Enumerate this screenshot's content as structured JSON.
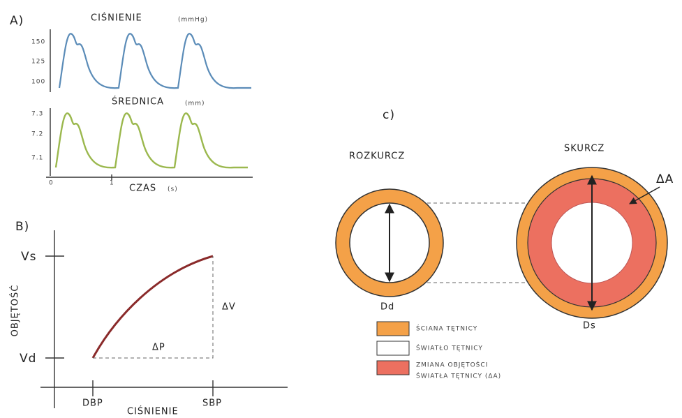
{
  "panel_a": {
    "label": "A)",
    "pressure": {
      "title": "CIŚNIENIE",
      "unit": "(mmHg)",
      "ticks": [
        "150",
        "125",
        "100"
      ]
    },
    "diameter": {
      "title": "ŚREDNICA",
      "unit": "(mm)",
      "ticks": [
        "7.3",
        "7.2",
        "7.1"
      ]
    },
    "x_ticks": [
      "0",
      "1"
    ],
    "x_title": "CZAS",
    "x_unit": "(s)"
  },
  "panel_b": {
    "label": "B)",
    "y_title": "OBJĘTOŚĆ",
    "y_ticks": [
      "Vs",
      "Vd"
    ],
    "x_title": "CIŚNIENIE",
    "x_ticks": [
      "DBP",
      "SBP"
    ],
    "delta_v": "ΔV",
    "delta_p": "ΔP"
  },
  "panel_c": {
    "label": "c)",
    "diastole": {
      "title": "ROZKURCZ",
      "diameter": "Dd"
    },
    "systole": {
      "title": "SKURCZ",
      "diameter": "Ds",
      "delta": "ΔA"
    },
    "legend": [
      "ŚCIANA TĘTNICY",
      "ŚWIATŁO TĘTNICY",
      [
        "ZMIANA OBJĘTOŚCI",
        "ŚWIATŁA TĘTNICY (ΔA)"
      ]
    ]
  }
}
